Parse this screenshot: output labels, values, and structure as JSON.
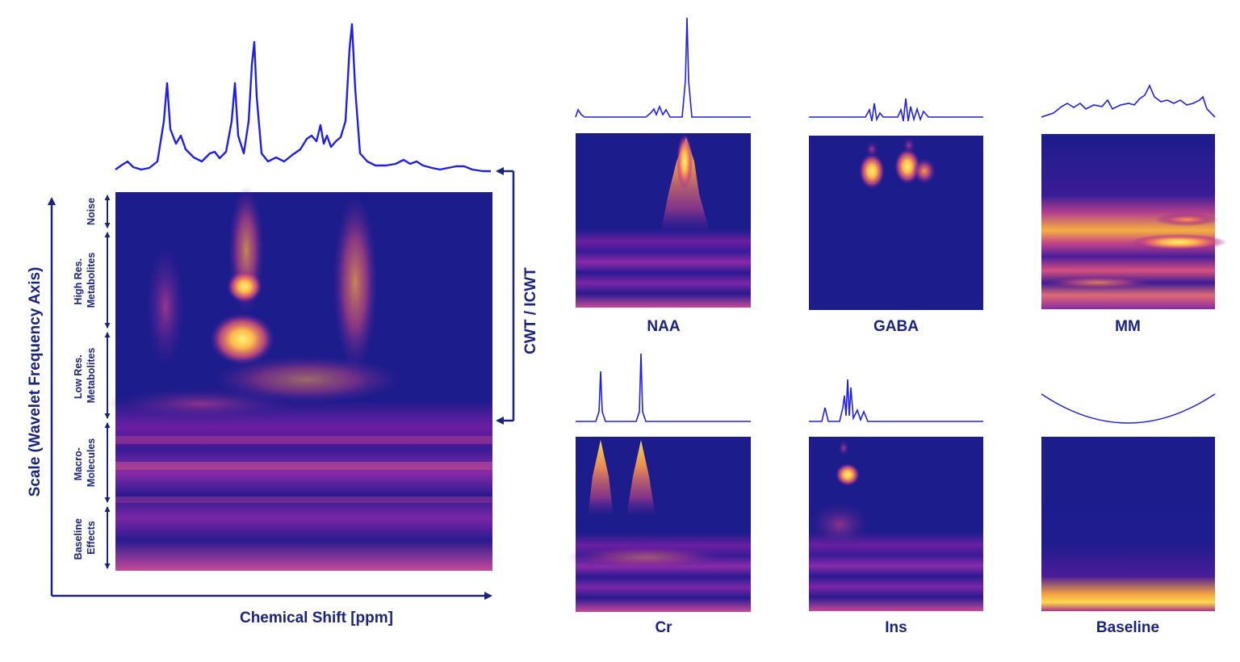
{
  "figure": {
    "main_panel": {
      "x_axis_label": "Chemical Shift [ppm]",
      "y_axis_label": "Scale (Wavelet Frequency Axis)",
      "transform_label": "CWT / ICWT",
      "scale_regions": [
        {
          "id": "noise",
          "lines": [
            "Noise"
          ]
        },
        {
          "id": "high-res",
          "lines": [
            "High Res.",
            "Metabolites"
          ]
        },
        {
          "id": "low-res",
          "lines": [
            "Low Res.",
            "Metabolites"
          ]
        },
        {
          "id": "macro",
          "lines": [
            "Macro-",
            "Molecules"
          ]
        },
        {
          "id": "baseline",
          "lines": [
            "Baseline",
            "Effects"
          ]
        }
      ]
    },
    "components": [
      {
        "id": "naa",
        "label": "NAA"
      },
      {
        "id": "gaba",
        "label": "GABA"
      },
      {
        "id": "mm",
        "label": "MM"
      },
      {
        "id": "cr",
        "label": "Cr"
      },
      {
        "id": "ins",
        "label": "Ins"
      },
      {
        "id": "baseline",
        "label": "Baseline"
      }
    ],
    "colors": {
      "axis": "#1a237e",
      "spectrum": "#1f1fe6",
      "scalogram_background": "#1c1c8c",
      "scalogram_low": "#7a1fa2",
      "scalogram_mid": "#e8557a",
      "scalogram_high": "#ffe45c"
    }
  }
}
